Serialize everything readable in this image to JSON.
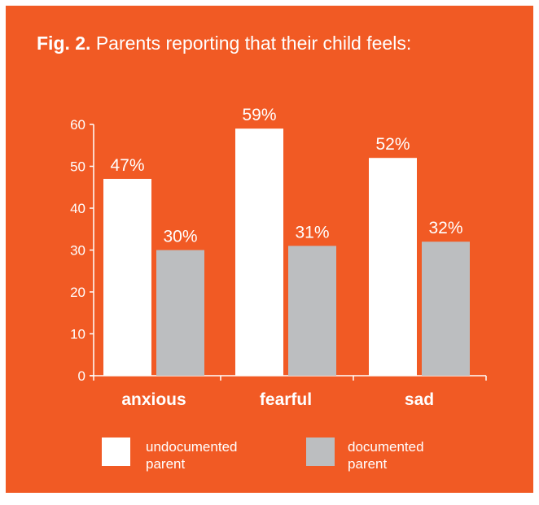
{
  "title": {
    "prefix": "Fig. 2.",
    "text": "Parents reporting that their child feels:"
  },
  "colors": {
    "background": "#f15a24",
    "undocumented": "#ffffff",
    "documented": "#bcbec0",
    "text": "#ffffff"
  },
  "chart_data": {
    "type": "bar",
    "title": "Fig. 2. Parents reporting that their child feels:",
    "categories": [
      "anxious",
      "fearful",
      "sad"
    ],
    "series": [
      {
        "name": "undocumented parent",
        "values": [
          47,
          59,
          52
        ],
        "labels": [
          "47%",
          "59%",
          "52%"
        ]
      },
      {
        "name": "documented parent",
        "values": [
          30,
          31,
          32
        ],
        "labels": [
          "30%",
          "31%",
          "32%"
        ]
      }
    ],
    "yticks": [
      0,
      10,
      20,
      30,
      40,
      50,
      60
    ],
    "ylim": [
      0,
      60
    ],
    "grid": false,
    "legend": {
      "placement": "bottom",
      "items": [
        {
          "line1": "undocumented",
          "line2": "parent"
        },
        {
          "line1": "documented",
          "line2": "parent"
        }
      ]
    }
  }
}
